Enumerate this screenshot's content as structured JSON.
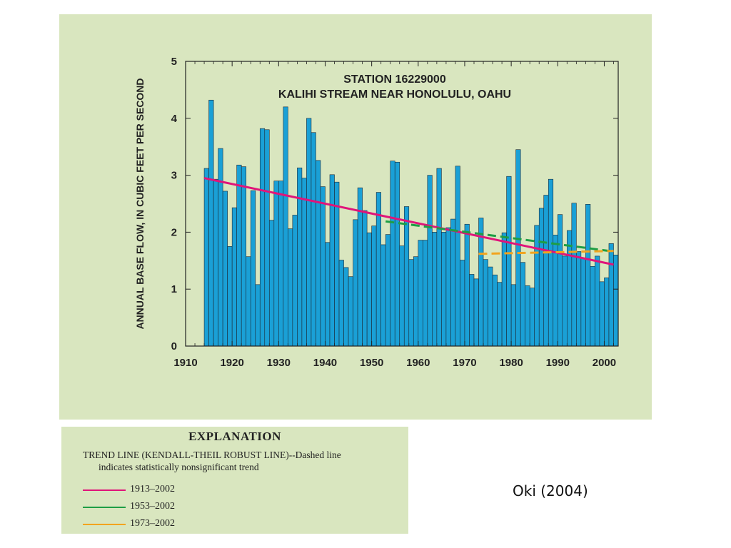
{
  "chart_data": {
    "type": "bar",
    "title_lines": [
      "STATION 16229000",
      "KALIHI STREAM NEAR HONOLULU, OAHU"
    ],
    "xlabel": "",
    "ylabel": "ANNUAL BASE FLOW, IN CUBIC FEET PER SECOND",
    "xlim": [
      1910,
      2003
    ],
    "ylim": [
      0,
      5
    ],
    "x_ticks": [
      1910,
      1920,
      1930,
      1940,
      1950,
      1960,
      1970,
      1980,
      1990,
      2000
    ],
    "y_ticks": [
      0,
      1,
      2,
      3,
      4,
      5
    ],
    "grid": false,
    "bar_color": "#1aa0d6",
    "years": [
      1914,
      1915,
      1916,
      1917,
      1918,
      1919,
      1920,
      1921,
      1922,
      1923,
      1924,
      1925,
      1926,
      1927,
      1928,
      1929,
      1930,
      1931,
      1932,
      1933,
      1934,
      1935,
      1936,
      1937,
      1938,
      1939,
      1940,
      1941,
      1942,
      1943,
      1944,
      1945,
      1946,
      1947,
      1948,
      1949,
      1950,
      1951,
      1952,
      1953,
      1954,
      1955,
      1956,
      1957,
      1958,
      1959,
      1960,
      1961,
      1962,
      1963,
      1964,
      1965,
      1966,
      1967,
      1968,
      1969,
      1970,
      1971,
      1972,
      1973,
      1974,
      1975,
      1976,
      1977,
      1978,
      1979,
      1980,
      1981,
      1982,
      1983,
      1984,
      1985,
      1986,
      1987,
      1988,
      1989,
      1990,
      1991,
      1992,
      1993,
      1994,
      1995,
      1996,
      1997,
      1998,
      1999,
      2000,
      2001,
      2002
    ],
    "values": [
      3.12,
      4.32,
      2.93,
      3.47,
      2.72,
      1.75,
      2.43,
      3.18,
      3.15,
      1.57,
      2.73,
      1.08,
      3.82,
      3.8,
      2.21,
      2.9,
      2.9,
      4.2,
      2.06,
      2.3,
      3.13,
      2.95,
      4.0,
      3.75,
      3.26,
      2.8,
      1.82,
      3.01,
      2.88,
      1.51,
      1.38,
      1.22,
      2.22,
      2.78,
      2.38,
      1.99,
      2.11,
      2.7,
      1.78,
      1.96,
      3.25,
      3.23,
      1.76,
      2.45,
      1.52,
      1.57,
      1.86,
      1.86,
      3.0,
      2.0,
      3.12,
      2.0,
      2.08,
      2.23,
      3.16,
      1.51,
      2.14,
      1.26,
      1.18,
      2.25,
      1.52,
      1.39,
      1.25,
      1.12,
      1.99,
      2.98,
      1.08,
      3.45,
      1.47,
      1.06,
      1.02,
      2.12,
      2.42,
      2.65,
      2.93,
      1.95,
      2.31,
      1.58,
      2.03,
      2.51,
      1.66,
      1.54,
      2.49,
      1.4,
      1.58,
      1.13,
      1.2,
      1.8,
      1.6
    ],
    "trend_lines": [
      {
        "name": "1913–2002",
        "color": "#e0147a",
        "dashed": false,
        "x": [
          1914,
          2002
        ],
        "y": [
          2.95,
          1.43
        ]
      },
      {
        "name": "1953–2002",
        "color": "#1e9e45",
        "dashed": true,
        "x": [
          1953,
          2002
        ],
        "y": [
          2.19,
          1.66
        ]
      },
      {
        "name": "1973–2002",
        "color": "#f2a41e",
        "dashed": true,
        "x": [
          1973,
          2002
        ],
        "y": [
          1.62,
          1.67
        ]
      }
    ]
  },
  "explanation": {
    "heading": "EXPLANATION",
    "description_line1": "TREND LINE (KENDALL-THEIL ROBUST LINE)--Dashed line",
    "description_line2": "indicates statistically nonsignificant trend",
    "legend": [
      {
        "label": "1913–2002",
        "color": "#e0147a"
      },
      {
        "label": "1953–2002",
        "color": "#1e9e45"
      },
      {
        "label": "1973–2002",
        "color": "#f2a41e"
      }
    ]
  },
  "citation": "Oki (2004)"
}
